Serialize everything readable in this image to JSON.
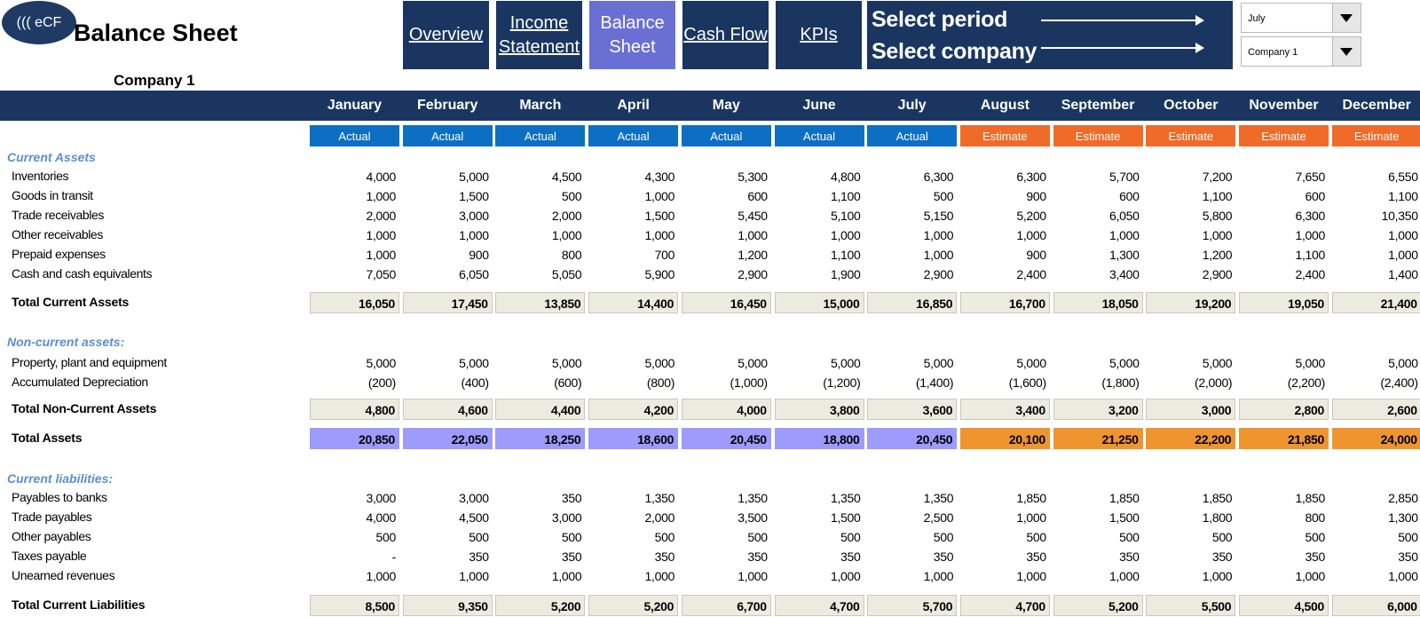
{
  "logo": "((( eCF",
  "title": "Balance Sheet",
  "company_label": "Company 1",
  "nav": [
    {
      "label": "Overview"
    },
    {
      "label": "Income Statement"
    },
    {
      "label": "Balance Sheet"
    },
    {
      "label": "Cash Flow"
    },
    {
      "label": "KPIs"
    }
  ],
  "select_period_label": "Select period",
  "select_company_label": "Select company",
  "period_value": "July",
  "company_value": "Company 1",
  "months": [
    "January",
    "February",
    "March",
    "April",
    "May",
    "June",
    "July",
    "August",
    "September",
    "October",
    "November",
    "December"
  ],
  "statuses": [
    "Actual",
    "Actual",
    "Actual",
    "Actual",
    "Actual",
    "Actual",
    "Actual",
    "Estimate",
    "Estimate",
    "Estimate",
    "Estimate",
    "Estimate"
  ],
  "colors": {
    "navy": "#1a3560",
    "active_nav": "#6a6fd4",
    "actual": "#0c6fc4",
    "estimate": "#f06a28",
    "total_assets_actual": "#9d9bfb",
    "total_assets_estimate": "#ee9530",
    "section": "#5b8fd0"
  },
  "sections": {
    "current_assets": "Current Assets",
    "non_current_assets": "Non-current assets:",
    "current_liabilities": "Current liabilities:"
  },
  "rows": {
    "current_assets": [
      {
        "label": "Inventories",
        "values": [
          "4,000",
          "5,000",
          "4,500",
          "4,300",
          "5,300",
          "4,800",
          "6,300",
          "6,300",
          "5,700",
          "7,200",
          "7,650",
          "6,550"
        ]
      },
      {
        "label": "Goods in transit",
        "values": [
          "1,000",
          "1,500",
          "500",
          "1,000",
          "600",
          "1,100",
          "500",
          "900",
          "600",
          "1,100",
          "600",
          "1,100"
        ]
      },
      {
        "label": "Trade receivables",
        "values": [
          "2,000",
          "3,000",
          "2,000",
          "1,500",
          "5,450",
          "5,100",
          "5,150",
          "5,200",
          "6,050",
          "5,800",
          "6,300",
          "10,350"
        ]
      },
      {
        "label": "Other receivables",
        "values": [
          "1,000",
          "1,000",
          "1,000",
          "1,000",
          "1,000",
          "1,000",
          "1,000",
          "1,000",
          "1,000",
          "1,000",
          "1,000",
          "1,000"
        ]
      },
      {
        "label": "Prepaid expenses",
        "values": [
          "1,000",
          "900",
          "800",
          "700",
          "1,200",
          "1,100",
          "1,000",
          "900",
          "1,300",
          "1,200",
          "1,100",
          "1,000"
        ]
      },
      {
        "label": "Cash and cash equivalents",
        "values": [
          "7,050",
          "6,050",
          "5,050",
          "5,900",
          "2,900",
          "1,900",
          "2,900",
          "2,400",
          "3,400",
          "2,900",
          "2,400",
          "1,400"
        ]
      }
    ],
    "total_current_assets": {
      "label": "Total Current Assets",
      "values": [
        "16,050",
        "17,450",
        "13,850",
        "14,400",
        "16,450",
        "15,000",
        "16,850",
        "16,700",
        "18,050",
        "19,200",
        "19,050",
        "21,400"
      ]
    },
    "non_current_assets": [
      {
        "label": "Property, plant and equipment",
        "values": [
          "5,000",
          "5,000",
          "5,000",
          "5,000",
          "5,000",
          "5,000",
          "5,000",
          "5,000",
          "5,000",
          "5,000",
          "5,000",
          "5,000"
        ]
      },
      {
        "label": "Accumulated Depreciation",
        "values": [
          "(200)",
          "(400)",
          "(600)",
          "(800)",
          "(1,000)",
          "(1,200)",
          "(1,400)",
          "(1,600)",
          "(1,800)",
          "(2,000)",
          "(2,200)",
          "(2,400)"
        ]
      }
    ],
    "total_non_current_assets": {
      "label": "Total Non-Current Assets",
      "values": [
        "4,800",
        "4,600",
        "4,400",
        "4,200",
        "4,000",
        "3,800",
        "3,600",
        "3,400",
        "3,200",
        "3,000",
        "2,800",
        "2,600"
      ]
    },
    "total_assets": {
      "label": "Total Assets",
      "values": [
        "20,850",
        "22,050",
        "18,250",
        "18,600",
        "20,450",
        "18,800",
        "20,450",
        "20,100",
        "21,250",
        "22,200",
        "21,850",
        "24,000"
      ]
    },
    "current_liabilities": [
      {
        "label": "Payables to banks",
        "values": [
          "3,000",
          "3,000",
          "350",
          "1,350",
          "1,350",
          "1,350",
          "1,350",
          "1,850",
          "1,850",
          "1,850",
          "1,850",
          "2,850"
        ]
      },
      {
        "label": "Trade payables",
        "values": [
          "4,000",
          "4,500",
          "3,000",
          "2,000",
          "3,500",
          "1,500",
          "2,500",
          "1,000",
          "1,500",
          "1,800",
          "800",
          "1,300"
        ]
      },
      {
        "label": "Other payables",
        "values": [
          "500",
          "500",
          "500",
          "500",
          "500",
          "500",
          "500",
          "500",
          "500",
          "500",
          "500",
          "500"
        ]
      },
      {
        "label": "Taxes payable",
        "values": [
          "-",
          "350",
          "350",
          "350",
          "350",
          "350",
          "350",
          "350",
          "350",
          "350",
          "350",
          "350"
        ]
      },
      {
        "label": "Unearned revenues",
        "values": [
          "1,000",
          "1,000",
          "1,000",
          "1,000",
          "1,000",
          "1,000",
          "1,000",
          "1,000",
          "1,000",
          "1,000",
          "1,000",
          "1,000"
        ]
      }
    ],
    "total_current_liabilities": {
      "label": "Total Current Liabilities",
      "values": [
        "8,500",
        "9,350",
        "5,200",
        "5,200",
        "6,700",
        "4,700",
        "5,700",
        "4,700",
        "5,200",
        "5,500",
        "4,500",
        "6,000"
      ]
    }
  }
}
